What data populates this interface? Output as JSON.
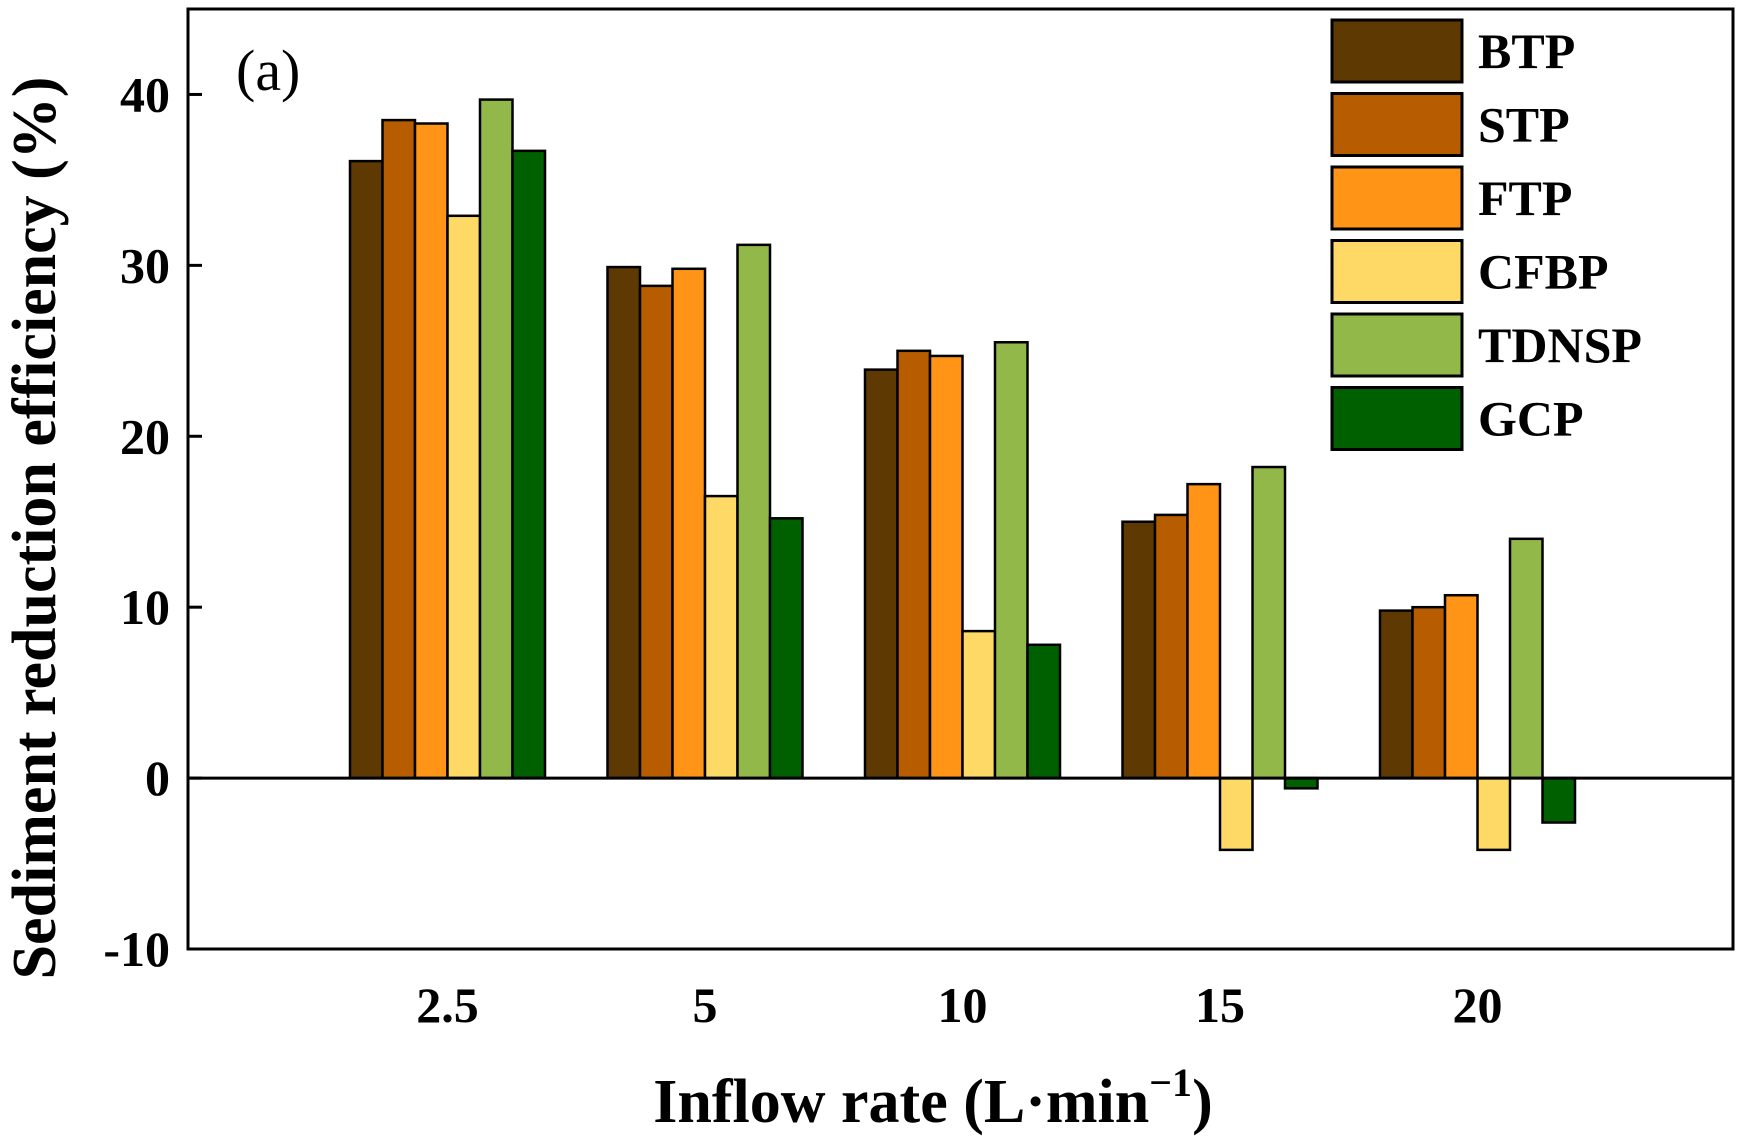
{
  "chart_data": {
    "type": "bar",
    "panel_label": "(a)",
    "title": "",
    "xlabel": "Inflow rate (L·min",
    "xlabel_superscript": "−1",
    "xlabel_close": ")",
    "ylabel": "Sediment reduction efficiency (%)",
    "ylim": [
      -10,
      45
    ],
    "yticks": [
      -10,
      0,
      10,
      20,
      30,
      40
    ],
    "categories": [
      "2.5",
      "5",
      "10",
      "15",
      "20"
    ],
    "legend_position": "top-right",
    "grid": false,
    "series": [
      {
        "name": "BTP",
        "color": "#5E3A02",
        "values": [
          36.1,
          29.9,
          23.9,
          15.0,
          9.8
        ]
      },
      {
        "name": "STP",
        "color": "#B85C00",
        "values": [
          38.5,
          28.8,
          25.0,
          15.4,
          10.0
        ]
      },
      {
        "name": "FTP",
        "color": "#FF9417",
        "values": [
          38.3,
          29.8,
          24.7,
          17.2,
          10.7
        ]
      },
      {
        "name": "CFBP",
        "color": "#FFD966",
        "values": [
          32.9,
          16.5,
          8.6,
          -4.2,
          -4.2
        ]
      },
      {
        "name": "TDNSP",
        "color": "#92B84A",
        "values": [
          39.7,
          31.2,
          25.5,
          18.2,
          14.0
        ]
      },
      {
        "name": "GCP",
        "color": "#006000",
        "values": [
          36.7,
          15.2,
          7.8,
          -0.6,
          -2.6
        ]
      }
    ]
  }
}
